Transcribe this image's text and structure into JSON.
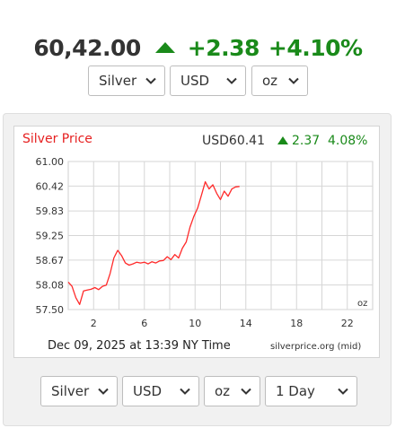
{
  "header": {
    "price": "60,42.00",
    "change": "+2.38",
    "change_pct": "+4.10%",
    "direction_icon": "arrow-up-icon",
    "colors": {
      "up": "#1a8a1a",
      "price": "#333333"
    }
  },
  "top_selects": {
    "metal": "Silver",
    "currency": "USD",
    "unit": "oz"
  },
  "chart": {
    "title": "Silver Price",
    "quote_price": "USD60.41",
    "quote_change": "2.37",
    "quote_pct": "4.08%",
    "unit_label": "oz",
    "footer_time": "Dec 09, 2025 at 13:39 NY Time",
    "footer_source": "silverprice.org (mid)",
    "colors": {
      "line": "#ff2a2a",
      "title": "#e62020",
      "up": "#1a8a1a"
    }
  },
  "chart_data": {
    "type": "line",
    "title": "Silver Price",
    "xlabel": "",
    "ylabel": "",
    "xlim": [
      0,
      24
    ],
    "ylim": [
      57.5,
      61.0
    ],
    "grid": true,
    "x_ticks": [
      2,
      6,
      10,
      14,
      18,
      22
    ],
    "x_tick_labels": [
      "2",
      "6",
      "10",
      "14",
      "18",
      "22"
    ],
    "y_ticks": [
      61.0,
      60.42,
      59.83,
      59.25,
      58.67,
      58.08,
      57.5
    ],
    "y_tick_labels": [
      "61.00",
      "60.42",
      "59.83",
      "59.25",
      "58.67",
      "58.08",
      "57.50"
    ],
    "series": [
      {
        "x": [
          0.0,
          0.3,
          0.6,
          0.9,
          1.2,
          1.5,
          1.8,
          2.1,
          2.4,
          2.7,
          3.0,
          3.3,
          3.6,
          3.9,
          4.2,
          4.5,
          4.8,
          5.1,
          5.4,
          5.7,
          6.0,
          6.3,
          6.6,
          6.9,
          7.2,
          7.5,
          7.8,
          8.1,
          8.4,
          8.7,
          9.0,
          9.3,
          9.6,
          9.9,
          10.2,
          10.5,
          10.8,
          11.1,
          11.4,
          11.7,
          12.0,
          12.3,
          12.6,
          12.9,
          13.2,
          13.5
        ],
        "y": [
          58.15,
          58.05,
          57.78,
          57.62,
          57.94,
          57.96,
          57.98,
          58.02,
          57.97,
          58.05,
          58.08,
          58.35,
          58.72,
          58.9,
          58.78,
          58.6,
          58.55,
          58.58,
          58.62,
          58.6,
          58.62,
          58.58,
          58.63,
          58.6,
          58.65,
          58.66,
          58.75,
          58.68,
          58.8,
          58.72,
          58.95,
          59.1,
          59.45,
          59.7,
          59.9,
          60.2,
          60.52,
          60.35,
          60.45,
          60.25,
          60.1,
          60.3,
          60.18,
          60.35,
          60.4,
          60.41
        ]
      }
    ]
  },
  "bottom_selects": {
    "metal": "Silver",
    "currency": "USD",
    "unit": "oz",
    "range": "1 Day"
  }
}
